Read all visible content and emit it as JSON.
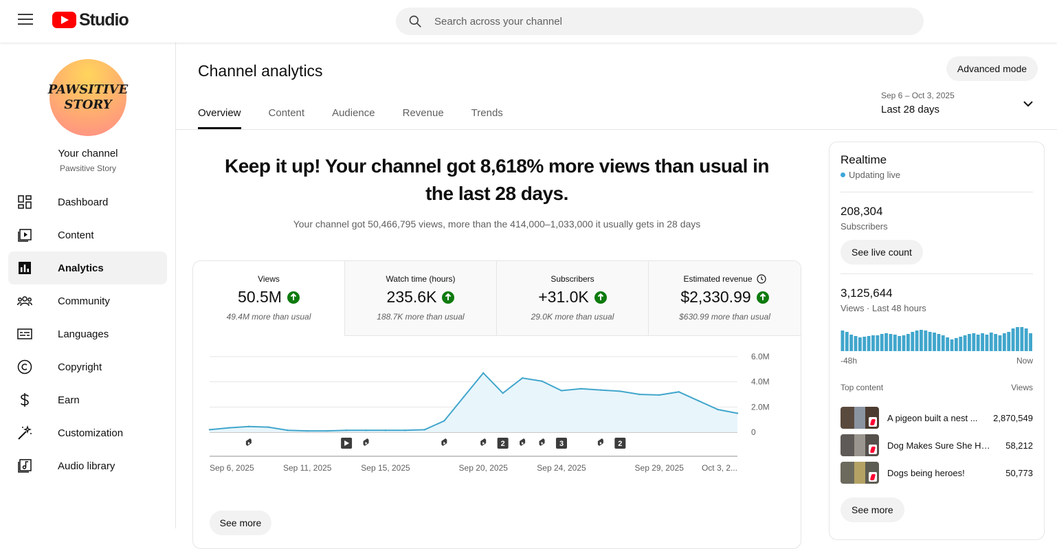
{
  "app": {
    "logo_text": "Studio"
  },
  "search": {
    "placeholder": "Search across your channel"
  },
  "channel": {
    "avatar_line1": "PAWSITIVE",
    "avatar_line2": "STORY",
    "title": "Your channel",
    "name": "Pawsitive Story"
  },
  "sidebar": {
    "items": [
      {
        "label": "Dashboard",
        "icon": "dashboard-icon"
      },
      {
        "label": "Content",
        "icon": "content-icon"
      },
      {
        "label": "Analytics",
        "icon": "analytics-icon",
        "active": true
      },
      {
        "label": "Community",
        "icon": "community-icon"
      },
      {
        "label": "Languages",
        "icon": "languages-icon"
      },
      {
        "label": "Copyright",
        "icon": "copyright-icon"
      },
      {
        "label": "Earn",
        "icon": "earn-icon"
      },
      {
        "label": "Customization",
        "icon": "customization-icon"
      },
      {
        "label": "Audio library",
        "icon": "audio-library-icon"
      }
    ]
  },
  "header": {
    "title": "Channel analytics",
    "advanced_mode": "Advanced mode",
    "tabs": [
      "Overview",
      "Content",
      "Audience",
      "Revenue",
      "Trends"
    ],
    "active_tab": "Overview",
    "date_range": {
      "dates": "Sep 6 – Oct 3, 2025",
      "label": "Last 28 days"
    }
  },
  "summary": {
    "headline": "Keep it up! Your channel got 8,618% more views than usual in the last 28 days.",
    "subline": "Your channel got 50,466,795 views, more than the 414,000–1,033,000 it usually gets in 28 days"
  },
  "metrics": [
    {
      "label": "Views",
      "value": "50.5M",
      "note": "49.4M more than usual",
      "active": true
    },
    {
      "label": "Watch time (hours)",
      "value": "235.6K",
      "note": "188.7K more than usual"
    },
    {
      "label": "Subscribers",
      "value": "+31.0K",
      "note": "29.0K more than usual"
    },
    {
      "label": "Estimated revenue",
      "value": "$2,330.99",
      "note": "$630.99 more than usual",
      "has_clock": true
    }
  ],
  "chart_data": {
    "type": "area",
    "metric": "Views",
    "x": [
      "Sep 6",
      "Sep 7",
      "Sep 8",
      "Sep 9",
      "Sep 10",
      "Sep 11",
      "Sep 12",
      "Sep 13",
      "Sep 14",
      "Sep 15",
      "Sep 16",
      "Sep 17",
      "Sep 18",
      "Sep 19",
      "Sep 20",
      "Sep 21",
      "Sep 22",
      "Sep 23",
      "Sep 24",
      "Sep 25",
      "Sep 26",
      "Sep 27",
      "Sep 28",
      "Sep 29",
      "Sep 30",
      "Oct 1",
      "Oct 2",
      "Oct 3"
    ],
    "values": [
      0.2,
      0.35,
      0.45,
      0.4,
      0.15,
      0.1,
      0.1,
      0.15,
      0.15,
      0.15,
      0.15,
      0.2,
      0.9,
      2.8,
      4.7,
      3.1,
      4.3,
      4.05,
      3.3,
      3.45,
      3.35,
      3.25,
      3.0,
      2.95,
      3.2,
      2.5,
      1.8,
      1.5
    ],
    "x_tick_labels": [
      "Sep 6, 2025",
      "Sep 11, 2025",
      "Sep 15, 2025",
      "Sep 20, 2025",
      "Sep 24, 2025",
      "Sep 29, 2025",
      "Oct 3, 2..."
    ],
    "x_tick_index": [
      0,
      5,
      9,
      14,
      18,
      23,
      27
    ],
    "y_ticks": [
      0,
      2,
      4,
      6
    ],
    "y_tick_labels": [
      "0",
      "2.0M",
      "4.0M",
      "6.0M"
    ],
    "ylim": [
      0,
      6
    ],
    "markers": [
      {
        "index": 2,
        "kind": "short"
      },
      {
        "index": 7,
        "kind": "video"
      },
      {
        "index": 8,
        "kind": "short"
      },
      {
        "index": 12,
        "kind": "short"
      },
      {
        "index": 14,
        "kind": "short"
      },
      {
        "index": 15,
        "kind": "count",
        "label": "2"
      },
      {
        "index": 16,
        "kind": "short"
      },
      {
        "index": 17,
        "kind": "short"
      },
      {
        "index": 18,
        "kind": "count",
        "label": "3"
      },
      {
        "index": 20,
        "kind": "short"
      },
      {
        "index": 21,
        "kind": "count",
        "label": "2"
      }
    ],
    "color": "#41a6cc",
    "fill": "#e8f5fb",
    "grid": true
  },
  "chart": {
    "see_more": "See more"
  },
  "realtime": {
    "title": "Realtime",
    "live_label": "Updating live",
    "subscribers_value": "208,304",
    "subscribers_label": "Subscribers",
    "see_live_count": "See live count",
    "views_value": "3,125,644",
    "views_label": "Views · Last 48 hours",
    "bars": [
      30,
      28,
      24,
      22,
      20,
      21,
      22,
      23,
      23,
      25,
      26,
      25,
      24,
      22,
      23,
      25,
      28,
      30,
      31,
      30,
      28,
      27,
      25,
      23,
      20,
      17,
      19,
      21,
      23,
      25,
      26,
      24,
      26,
      24,
      27,
      25,
      23,
      26,
      28,
      33,
      35,
      35,
      33,
      26
    ],
    "axis_start": "-48h",
    "axis_end": "Now",
    "top_content_label": "Top content",
    "top_content_views_label": "Views",
    "top_content": [
      {
        "title": "A pigeon built a nest ...",
        "views": "2,870,549"
      },
      {
        "title": "Dog Makes Sure She Ha...",
        "views": "58,212"
      },
      {
        "title": "Dogs being heroes!",
        "views": "50,773"
      }
    ],
    "see_more": "See more",
    "accent": "#41a6cc"
  }
}
